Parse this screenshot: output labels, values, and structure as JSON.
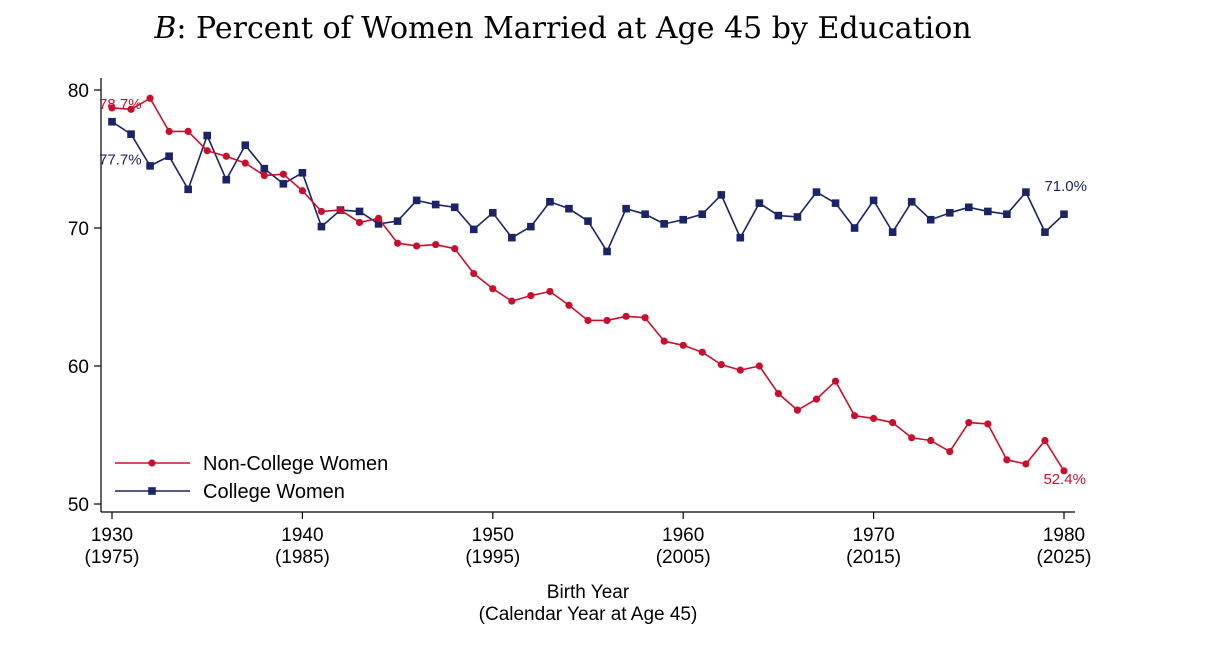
{
  "chart_data": {
    "type": "line",
    "title_prefix": "B",
    "title_rest": ": Percent of Women Married at Age 45 by Education",
    "xlabel_line1": "Birth Year",
    "xlabel_line2": "(Calendar Year at Age 45)",
    "ylabel": "",
    "xlim": [
      1930,
      1980
    ],
    "ylim": [
      50,
      80
    ],
    "x_ticks": [
      {
        "value": 1930,
        "label": "1930",
        "sublabel": "(1975)"
      },
      {
        "value": 1940,
        "label": "1940",
        "sublabel": "(1985)"
      },
      {
        "value": 1950,
        "label": "1950",
        "sublabel": "(1995)"
      },
      {
        "value": 1960,
        "label": "1960",
        "sublabel": "(2005)"
      },
      {
        "value": 1970,
        "label": "1970",
        "sublabel": "(2015)"
      },
      {
        "value": 1980,
        "label": "1980",
        "sublabel": "(2025)"
      }
    ],
    "y_ticks": [
      {
        "value": 50,
        "label": "50"
      },
      {
        "value": 60,
        "label": "60"
      },
      {
        "value": 70,
        "label": "70"
      },
      {
        "value": 80,
        "label": "80"
      }
    ],
    "grid": false,
    "legend_position": "bottom-left",
    "x": [
      1930,
      1931,
      1932,
      1933,
      1934,
      1935,
      1936,
      1937,
      1938,
      1939,
      1940,
      1941,
      1942,
      1943,
      1944,
      1945,
      1946,
      1947,
      1948,
      1949,
      1950,
      1951,
      1952,
      1953,
      1954,
      1955,
      1956,
      1957,
      1958,
      1959,
      1960,
      1961,
      1962,
      1963,
      1964,
      1965,
      1966,
      1967,
      1968,
      1969,
      1970,
      1971,
      1972,
      1973,
      1974,
      1975,
      1976,
      1977,
      1978,
      1979,
      1980
    ],
    "series": [
      {
        "name": "Non-College Women",
        "color": "#c8102e",
        "marker": "circle",
        "values": [
          78.7,
          78.6,
          79.4,
          77.0,
          77.0,
          75.6,
          75.2,
          74.7,
          73.8,
          73.9,
          72.7,
          71.2,
          71.3,
          70.4,
          70.7,
          68.9,
          68.7,
          68.8,
          68.5,
          66.7,
          65.6,
          64.7,
          65.1,
          65.4,
          64.4,
          63.3,
          63.3,
          63.6,
          63.5,
          61.8,
          61.5,
          61.0,
          60.1,
          59.7,
          60.0,
          58.0,
          56.8,
          57.6,
          58.9,
          56.4,
          56.2,
          55.9,
          54.8,
          54.6,
          53.8,
          55.9,
          55.8,
          53.2,
          52.9,
          54.6,
          52.4
        ],
        "annotations": [
          {
            "index": 0,
            "text": "78.7%"
          },
          {
            "index": 50,
            "text": "52.4%"
          }
        ]
      },
      {
        "name": "College Women",
        "color": "#1a2466",
        "marker": "square",
        "values": [
          77.7,
          76.8,
          74.5,
          75.2,
          72.8,
          76.7,
          73.5,
          76.0,
          74.3,
          73.2,
          74.0,
          70.1,
          71.3,
          71.2,
          70.3,
          70.5,
          72.0,
          71.7,
          71.5,
          69.9,
          71.1,
          69.3,
          70.1,
          71.9,
          71.4,
          70.5,
          68.3,
          71.4,
          71.0,
          70.3,
          70.6,
          71.0,
          72.4,
          69.3,
          71.8,
          70.9,
          70.8,
          72.6,
          71.8,
          70.0,
          72.0,
          69.7,
          71.9,
          70.6,
          71.1,
          71.5,
          71.2,
          71.0,
          72.6,
          69.7,
          71.0
        ],
        "annotations": [
          {
            "index": 0,
            "text": "77.7%"
          },
          {
            "index": 50,
            "text": "71.0%"
          }
        ]
      }
    ]
  }
}
